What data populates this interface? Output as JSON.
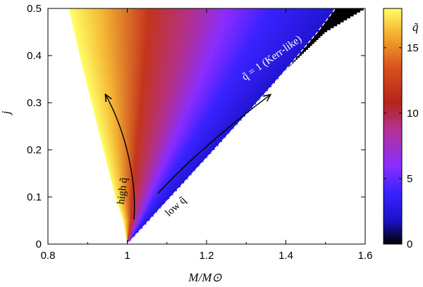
{
  "chart_data": {
    "type": "heatmap",
    "xlabel": "M/M⊙",
    "ylabel": "j",
    "xlim": [
      0.8,
      1.6
    ],
    "ylim": [
      0,
      0.5
    ],
    "xticks": [
      "0.8",
      "1",
      "1.2",
      "1.4",
      "1.6"
    ],
    "yticks": [
      "0",
      "0.1",
      "0.2",
      "0.3",
      "0.4",
      "0.5"
    ],
    "colorbar": {
      "label": "q̃",
      "range": [
        0,
        18
      ],
      "ticks": [
        "0",
        "5",
        "10",
        "15"
      ],
      "colormap": [
        "#000000",
        "#2a1bf0",
        "#8a2cff",
        "#c23a7a",
        "#b6221a",
        "#e0661c",
        "#f6c02a",
        "#ffff66"
      ]
    },
    "kerr_line": {
      "label": "q̃ = 1 (Kerr-like)",
      "points": [
        [
          1.0,
          0.0
        ],
        [
          1.2,
          0.183
        ],
        [
          1.3,
          0.275
        ],
        [
          1.4,
          0.37
        ],
        [
          1.48,
          0.45
        ],
        [
          1.525,
          0.5
        ]
      ]
    },
    "upper_boundary": [
      [
        1.0,
        0.0
      ],
      [
        1.02,
        0.03
      ],
      [
        1.1,
        0.11
      ],
      [
        1.2,
        0.2
      ],
      [
        1.3,
        0.285
      ],
      [
        1.4,
        0.37
      ],
      [
        1.5,
        0.45
      ],
      [
        1.6,
        0.5
      ]
    ],
    "left_boundary": [
      [
        1.0,
        0.0
      ],
      [
        0.99,
        0.05
      ],
      [
        0.97,
        0.1
      ],
      [
        0.94,
        0.2
      ],
      [
        0.91,
        0.3
      ],
      [
        0.88,
        0.4
      ],
      [
        0.853,
        0.5
      ]
    ],
    "annotations": [
      {
        "text": "high q̃",
        "arrow": "up"
      },
      {
        "text": "low q̃",
        "arrow": "up-right"
      }
    ]
  }
}
